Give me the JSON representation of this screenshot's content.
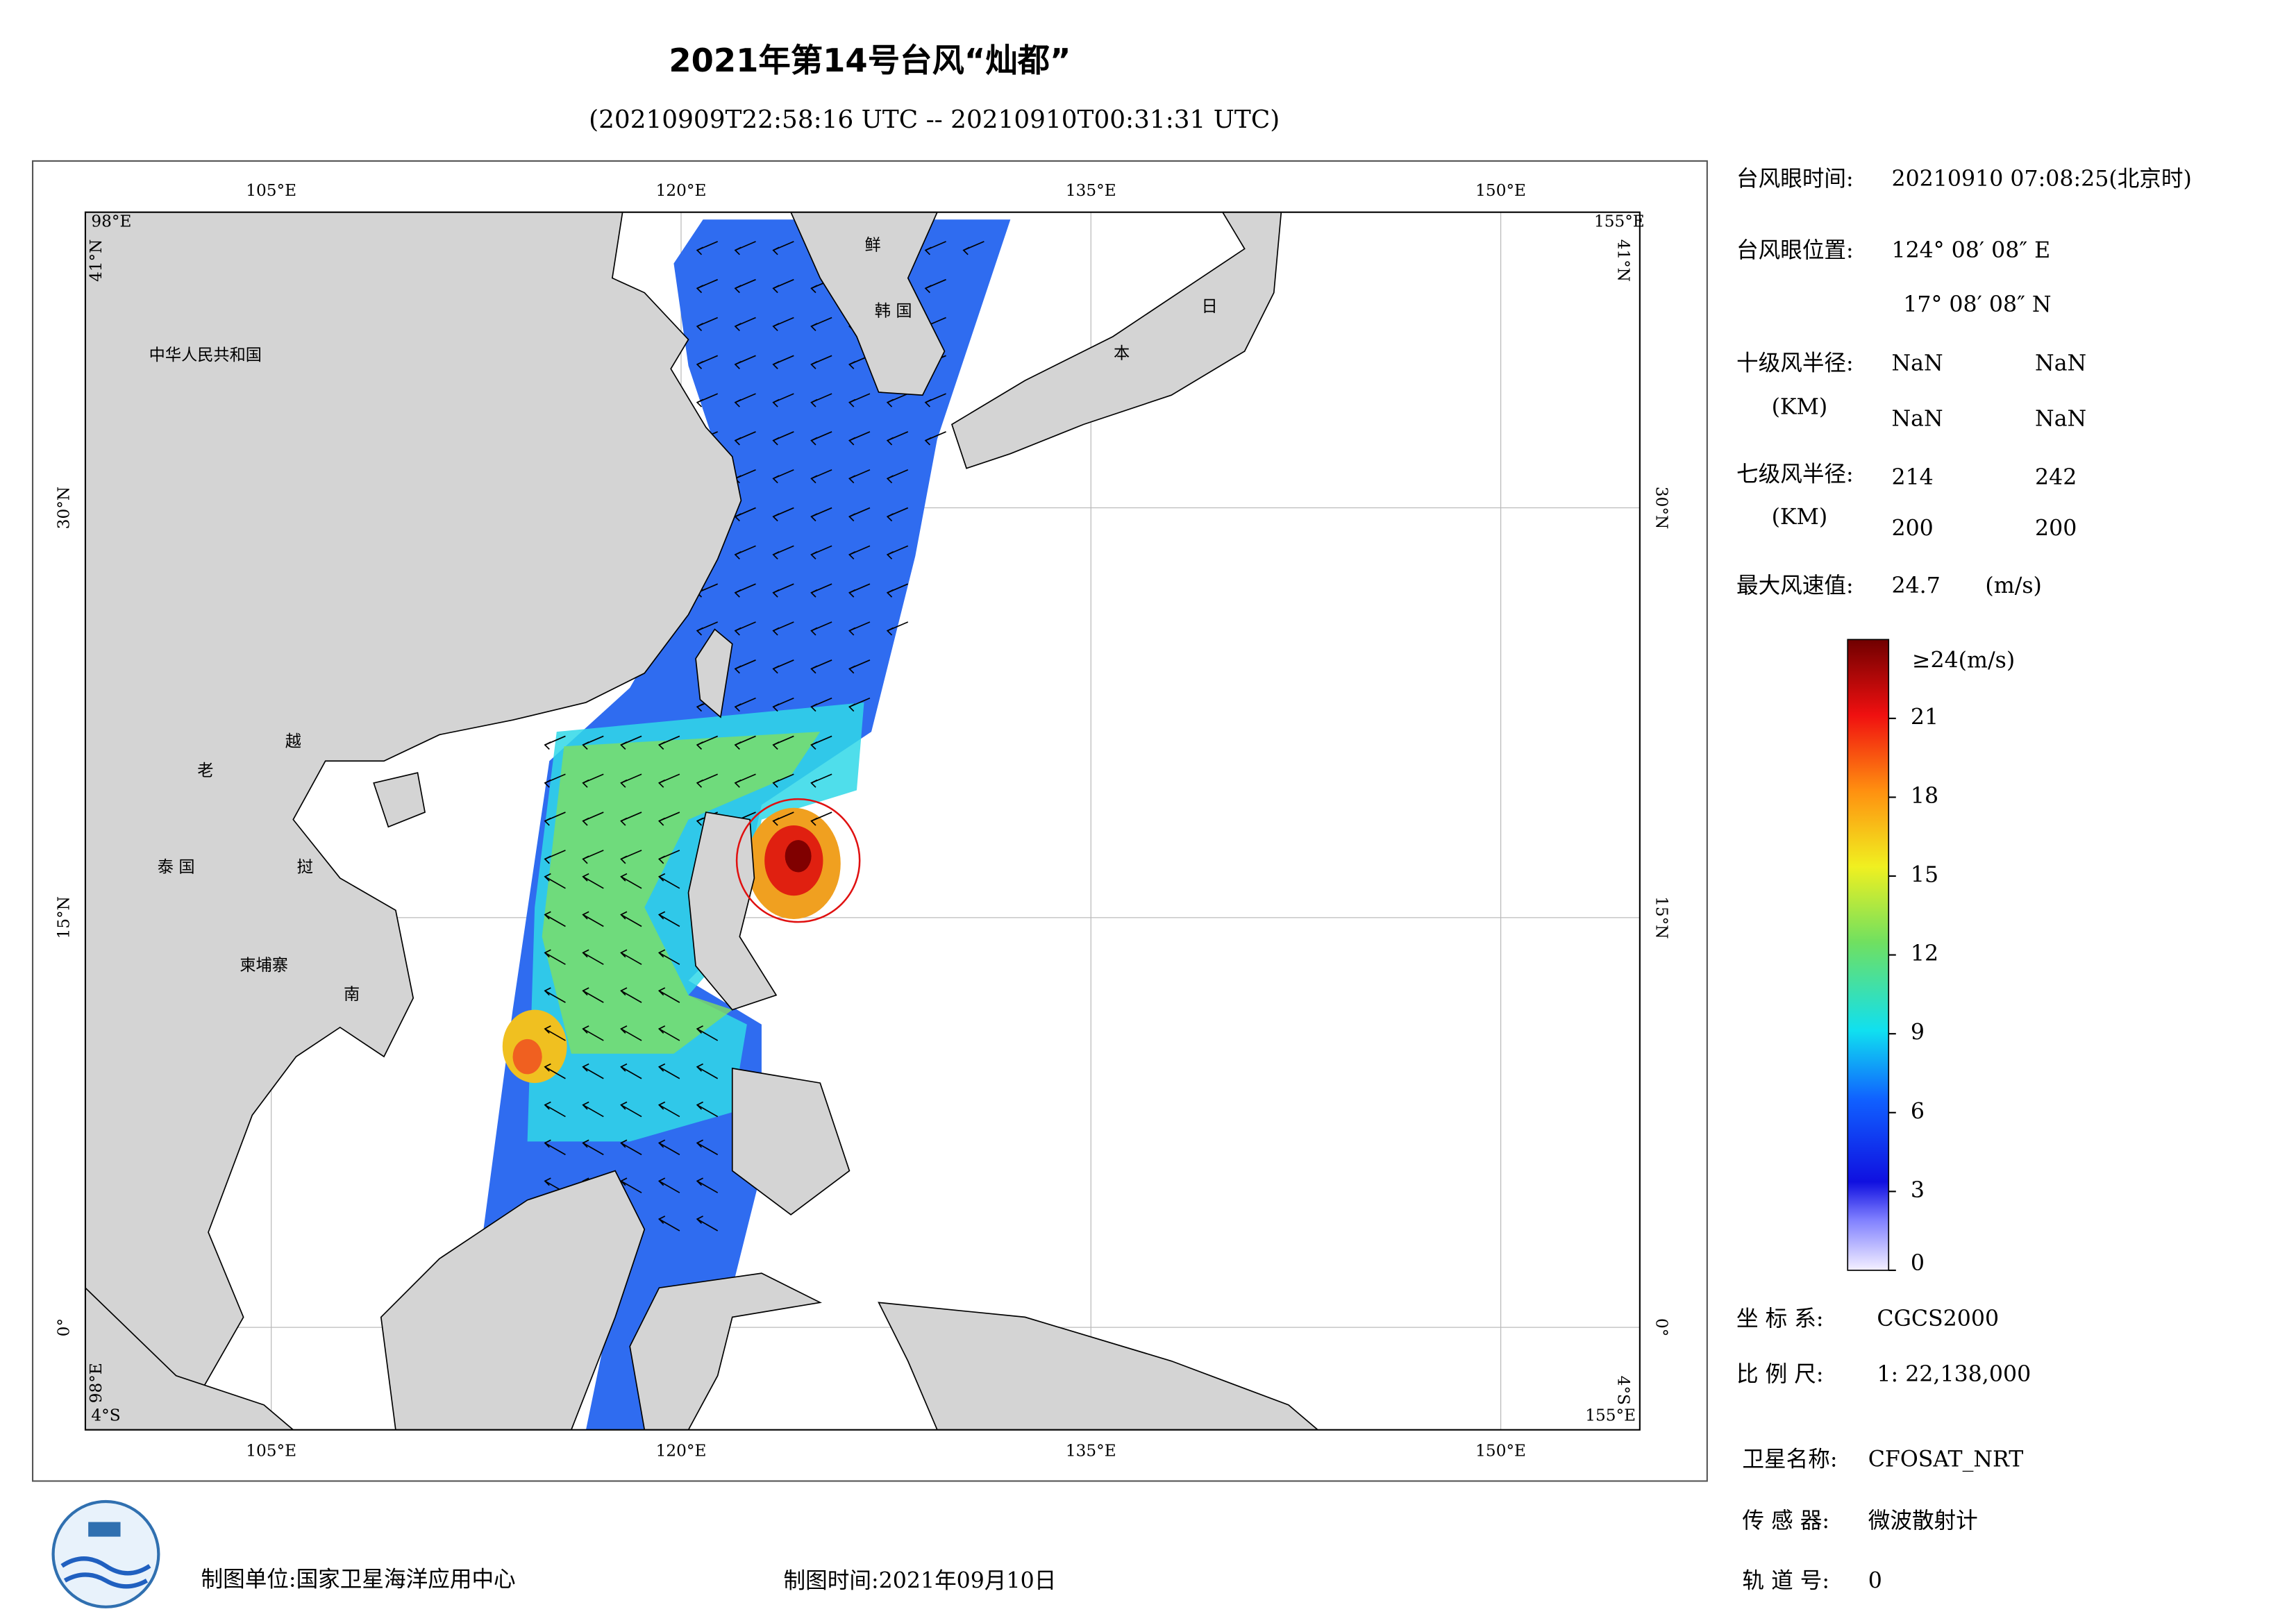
{
  "title": "2021年第14号台风“灿都”",
  "subtitle": "(20210909T22:58:16 UTC -- 20210910T00:31:31 UTC)",
  "map": {
    "lon_ticks": [
      {
        "value": 105,
        "label": "105°E"
      },
      {
        "value": 120,
        "label": "120°E"
      },
      {
        "value": 135,
        "label": "135°E"
      },
      {
        "value": 150,
        "label": "150°E"
      }
    ],
    "lat_ticks": [
      {
        "value": 30,
        "label": "30°N"
      },
      {
        "value": 15,
        "label": "15°N"
      },
      {
        "value": 0,
        "label": "0°"
      }
    ],
    "corner_labels": {
      "west": "98°E",
      "east": "155°E",
      "north": "41°N",
      "south": "4°S"
    },
    "place_labels": [
      "中华人民共和国",
      "老",
      "越",
      "泰 国",
      "挝",
      "柬埔寨",
      "南",
      "鲜",
      "韩 国",
      "日",
      "本"
    ]
  },
  "info": {
    "eye_time": {
      "label": "台风眼时间:",
      "value": "20210910 07:08:25(北京时)"
    },
    "eye_position": {
      "label": "台风眼位置:",
      "lon": "124° 08′ 08″ E",
      "lat": "17° 08′ 08″ N"
    },
    "r10": {
      "label": "十级风半径:",
      "unit": "(KM)",
      "values": [
        "NaN",
        "NaN",
        "NaN",
        "NaN"
      ]
    },
    "r7": {
      "label": "七级风半径:",
      "unit": "(KM)",
      "values": [
        214,
        242,
        200,
        200
      ]
    },
    "max_wind": {
      "label": "最大风速值:",
      "value": 24.7,
      "unit": "(m/s)"
    }
  },
  "colorbar": {
    "top_label": "≥24(m/s)",
    "lim": [
      0,
      24
    ],
    "ticks": [
      21,
      18,
      15,
      12,
      9,
      6,
      3,
      0
    ]
  },
  "meta": {
    "coord_system": {
      "label": "坐 标 系:",
      "value": "CGCS2000"
    },
    "scale": {
      "label": "比 例 尺:",
      "value": "1: 22,138,000"
    },
    "satellite": {
      "label": "卫星名称:",
      "value": "CFOSAT_NRT"
    },
    "sensor": {
      "label": "传 感 器:",
      "value": "微波散射计"
    },
    "orbit": {
      "label": "轨 道 号:",
      "value": 0
    }
  },
  "footer": {
    "producer": "制图单位:国家卫星海洋应用中心",
    "date": "制图时间:2021年09月10日"
  }
}
